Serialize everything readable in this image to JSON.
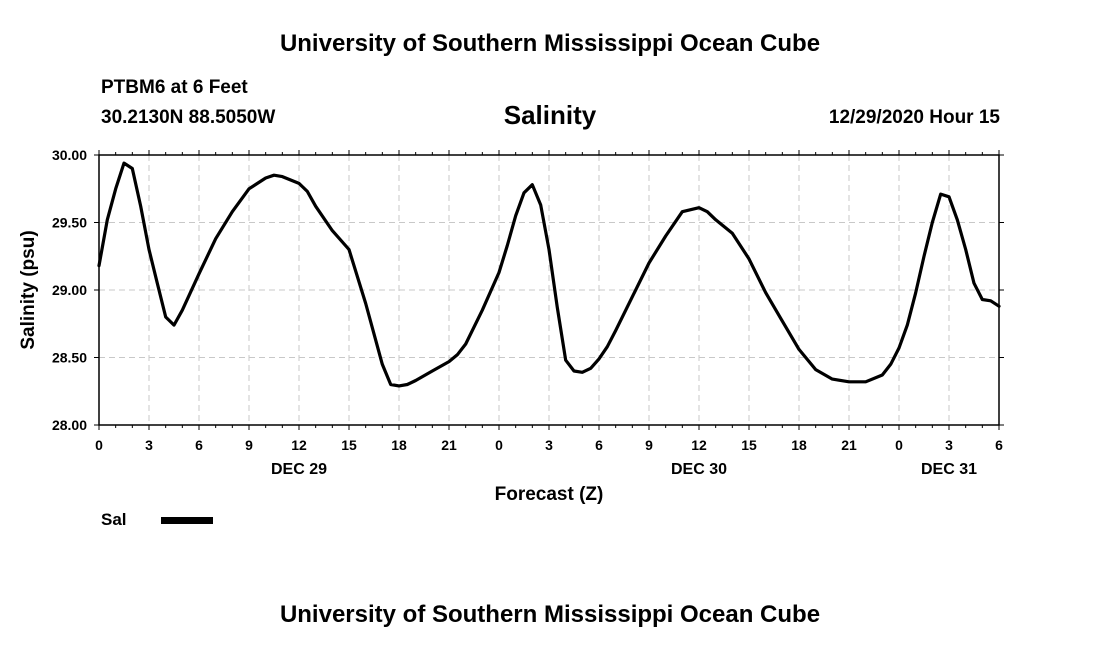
{
  "header": {
    "top_title": "University of Southern Mississippi Ocean Cube",
    "bottom_title": "University of Southern Mississippi Ocean Cube",
    "station": "PTBM6 at 6 Feet",
    "coords": "30.2130N 88.5050W",
    "datetime": "12/29/2020 Hour 15"
  },
  "legend": {
    "label": "Sal"
  },
  "chart_data": {
    "type": "line",
    "title": "Salinity",
    "xlabel": "Forecast (Z)",
    "ylabel": "Salinity (psu)",
    "ylim": [
      28.0,
      30.0
    ],
    "yticks": [
      "28.00",
      "28.50",
      "29.00",
      "29.50",
      "30.00"
    ],
    "xlim": [
      0,
      54
    ],
    "xticks": [
      {
        "x": 0,
        "label": "0"
      },
      {
        "x": 3,
        "label": "3"
      },
      {
        "x": 6,
        "label": "6"
      },
      {
        "x": 9,
        "label": "9"
      },
      {
        "x": 12,
        "label": "12"
      },
      {
        "x": 15,
        "label": "15"
      },
      {
        "x": 18,
        "label": "18"
      },
      {
        "x": 21,
        "label": "21"
      },
      {
        "x": 24,
        "label": "0"
      },
      {
        "x": 27,
        "label": "3"
      },
      {
        "x": 30,
        "label": "6"
      },
      {
        "x": 33,
        "label": "9"
      },
      {
        "x": 36,
        "label": "12"
      },
      {
        "x": 39,
        "label": "15"
      },
      {
        "x": 42,
        "label": "18"
      },
      {
        "x": 45,
        "label": "21"
      },
      {
        "x": 48,
        "label": "0"
      },
      {
        "x": 51,
        "label": "3"
      },
      {
        "x": 54,
        "label": "6"
      }
    ],
    "day_labels": [
      {
        "x": 12,
        "label": "DEC 29"
      },
      {
        "x": 36,
        "label": "DEC 30"
      },
      {
        "x": 51,
        "label": "DEC 31"
      }
    ],
    "grid": true,
    "series": [
      {
        "name": "Sal",
        "color": "#000000",
        "x": [
          0,
          0.5,
          1,
          1.5,
          2,
          2.5,
          3,
          3.5,
          4,
          4.5,
          5,
          6,
          7,
          8,
          9,
          10,
          10.5,
          11,
          12,
          12.5,
          13,
          14,
          15,
          16,
          17,
          17.5,
          18,
          18.5,
          19,
          20,
          21,
          21.5,
          22,
          23,
          24,
          24.5,
          25,
          25.5,
          26,
          26.5,
          27,
          27.5,
          28,
          28.5,
          29,
          29.5,
          30,
          30.5,
          31,
          32,
          33,
          34,
          35,
          36,
          36.5,
          37,
          38,
          39,
          40,
          41,
          42,
          43,
          44,
          45,
          46,
          47,
          47.5,
          48,
          48.5,
          49,
          49.5,
          50,
          50.5,
          51,
          51.5,
          52,
          52.5,
          53,
          53.5,
          54
        ],
        "y": [
          29.18,
          29.52,
          29.75,
          29.94,
          29.9,
          29.62,
          29.3,
          29.05,
          28.8,
          28.74,
          28.85,
          29.12,
          29.38,
          29.58,
          29.75,
          29.83,
          29.85,
          29.84,
          29.79,
          29.73,
          29.62,
          29.44,
          29.3,
          28.9,
          28.45,
          28.3,
          28.29,
          28.3,
          28.33,
          28.4,
          28.47,
          28.52,
          28.6,
          28.85,
          29.13,
          29.33,
          29.55,
          29.72,
          29.78,
          29.63,
          29.3,
          28.87,
          28.48,
          28.4,
          28.39,
          28.42,
          28.49,
          28.58,
          28.7,
          28.95,
          29.2,
          29.4,
          29.58,
          29.61,
          29.58,
          29.52,
          29.42,
          29.23,
          28.98,
          28.77,
          28.56,
          28.41,
          28.34,
          28.32,
          28.32,
          28.37,
          28.45,
          28.57,
          28.74,
          28.98,
          29.25,
          29.5,
          29.71,
          29.69,
          29.52,
          29.3,
          29.05,
          28.93,
          28.92,
          28.88
        ]
      }
    ]
  }
}
